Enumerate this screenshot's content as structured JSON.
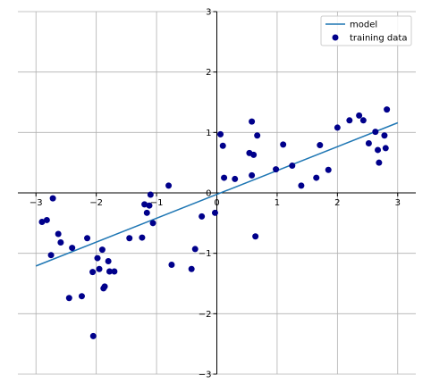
{
  "chart_data": {
    "type": "scatter",
    "title": "",
    "xlabel": "",
    "ylabel": "",
    "xlim": [
      -3.3,
      3.3
    ],
    "ylim": [
      -3,
      3
    ],
    "x_ticks": [
      -3,
      -2,
      -1,
      0,
      1,
      2,
      3
    ],
    "y_ticks": [
      -3,
      -2,
      -1,
      0,
      1,
      2,
      3
    ],
    "x_tick_labels": [
      "−3",
      "−2",
      "−1",
      "0",
      "1",
      "2",
      "3"
    ],
    "y_tick_labels": [
      "−3",
      "−2",
      "−1",
      "0",
      "1",
      "2",
      "3"
    ],
    "grid": true,
    "spines": "centered at origin",
    "legend_position": "top-right",
    "legend": [
      {
        "label": "model",
        "marker": "line"
      },
      {
        "label": "training data",
        "marker": "dot"
      }
    ],
    "series": [
      {
        "name": "model",
        "type": "line",
        "color": "#1f77b4",
        "x": [
          -3,
          3
        ],
        "y": [
          -1.21,
          1.16
        ]
      },
      {
        "name": "training data",
        "type": "scatter",
        "color": "#00008b",
        "x": [
          -2.9,
          -2.82,
          -2.75,
          -2.72,
          -2.63,
          -2.59,
          -2.45,
          -2.4,
          -2.24,
          -2.15,
          -2.06,
          -2.05,
          -1.98,
          -1.95,
          -1.9,
          -1.88,
          -1.86,
          -1.8,
          -1.78,
          -1.7,
          -1.45,
          -1.24,
          -1.2,
          -1.16,
          -1.12,
          -1.1,
          -1.06,
          -0.8,
          -0.75,
          -0.42,
          -0.36,
          -0.25,
          -0.03,
          0.06,
          0.1,
          0.12,
          0.3,
          0.54,
          0.58,
          0.58,
          0.61,
          0.64,
          0.67,
          0.98,
          1.1,
          1.25,
          1.4,
          1.65,
          1.71,
          1.85,
          2.0,
          2.2,
          2.36,
          2.43,
          2.52,
          2.63,
          2.67,
          2.69,
          2.78,
          2.8,
          2.82
        ],
        "y": [
          -0.48,
          -0.45,
          -1.03,
          -0.09,
          -0.68,
          -0.82,
          -1.74,
          -0.91,
          -1.71,
          -0.75,
          -1.31,
          -2.37,
          -1.08,
          -1.26,
          -0.94,
          -1.58,
          -1.55,
          -1.13,
          -1.3,
          -1.3,
          -0.75,
          -0.74,
          -0.19,
          -0.33,
          -0.21,
          -0.03,
          -0.5,
          0.12,
          -1.19,
          -1.26,
          -0.93,
          -0.39,
          -0.33,
          0.97,
          0.78,
          0.25,
          0.23,
          0.66,
          1.18,
          0.29,
          0.63,
          -0.72,
          0.95,
          0.39,
          0.8,
          0.45,
          0.12,
          0.25,
          0.79,
          0.38,
          1.08,
          1.2,
          1.28,
          1.2,
          0.82,
          1.01,
          0.71,
          0.5,
          0.95,
          0.74,
          1.38
        ]
      }
    ]
  }
}
